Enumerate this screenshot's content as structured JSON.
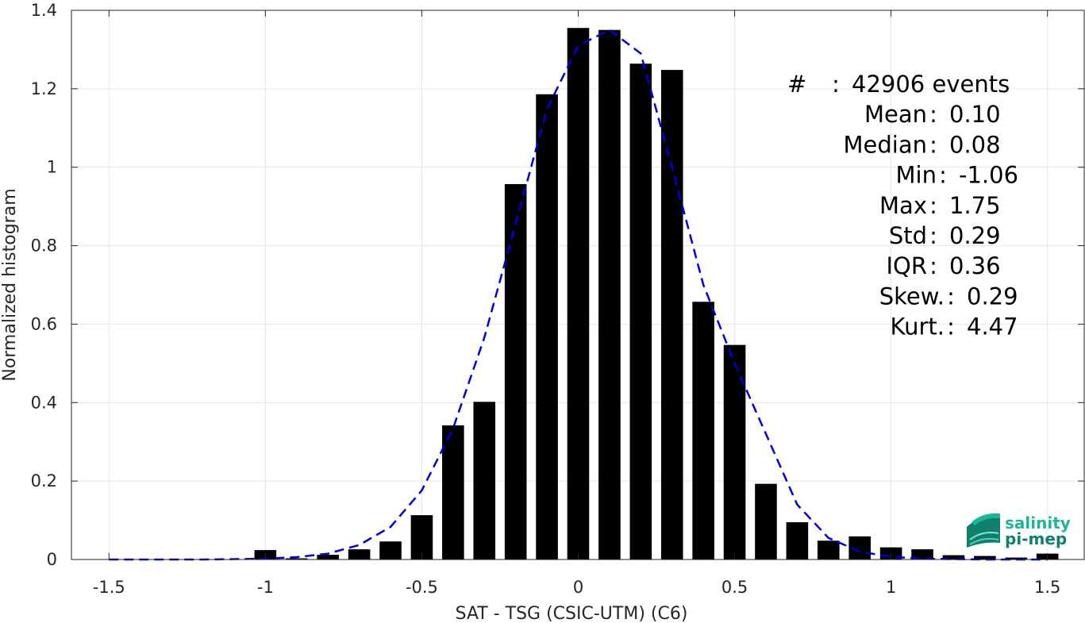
{
  "chart_data": {
    "type": "bar",
    "xlabel": "SAT - TSG (CSIC-UTM) (C6)",
    "ylabel": "Normalized histogram",
    "xlim": [
      -1.62,
      1.62
    ],
    "ylim": [
      0,
      1.4
    ],
    "grid": true,
    "x_ticks": [
      -1.5,
      -1,
      -0.5,
      0,
      0.5,
      1,
      1.5
    ],
    "x_tick_labels": [
      "-1.5",
      "-1",
      "-0.5",
      "0",
      "0.5",
      "1",
      "1.5"
    ],
    "y_ticks": [
      0,
      0.2,
      0.4,
      0.6,
      0.8,
      1,
      1.2,
      1.4
    ],
    "y_tick_labels": [
      "0",
      "0.2",
      "0.4",
      "0.6",
      "0.8",
      "1",
      "1.2",
      "1.4"
    ],
    "bar_width": 0.07,
    "bars": {
      "x": [
        -1.0,
        -0.9,
        -0.8,
        -0.7,
        -0.6,
        -0.5,
        -0.4,
        -0.3,
        -0.2,
        -0.1,
        0.0,
        0.1,
        0.2,
        0.3,
        0.4,
        0.5,
        0.6,
        0.7,
        0.8,
        0.9,
        1.0,
        1.1,
        1.2,
        1.3,
        1.4,
        1.5
      ],
      "values": [
        0.024,
        0.003,
        0.012,
        0.026,
        0.046,
        0.113,
        0.342,
        0.402,
        0.957,
        1.186,
        1.355,
        1.35,
        1.264,
        1.248,
        0.657,
        0.547,
        0.193,
        0.095,
        0.048,
        0.059,
        0.031,
        0.026,
        0.011,
        0.009,
        0.005,
        0.015
      ],
      "color": "#000000"
    },
    "fit_curve": {
      "style": "dashed",
      "color": "#0000dd",
      "x": [
        -1.5,
        -1.4,
        -1.3,
        -1.2,
        -1.1,
        -1.0,
        -0.9,
        -0.8,
        -0.7,
        -0.6,
        -0.5,
        -0.4,
        -0.3,
        -0.2,
        -0.1,
        0.0,
        0.1,
        0.2,
        0.3,
        0.4,
        0.5,
        0.6,
        0.7,
        0.8,
        0.9,
        1.0,
        1.1,
        1.2,
        1.3,
        1.4,
        1.5
      ],
      "y": [
        0.0,
        0.0,
        0.0,
        0.0,
        0.001,
        0.002,
        0.006,
        0.015,
        0.037,
        0.083,
        0.176,
        0.334,
        0.566,
        0.856,
        1.148,
        1.31,
        1.35,
        1.29,
        1.0,
        0.7,
        0.5,
        0.32,
        0.14,
        0.055,
        0.02,
        0.007,
        0.002,
        0.001,
        0.0,
        0.0,
        0.0
      ]
    }
  },
  "stats": [
    {
      "label": "#",
      "sep": " : ",
      "value": "42906 events"
    },
    {
      "label": "Mean",
      "sep": " : ",
      "value": "0.10"
    },
    {
      "label": "Median",
      "sep": " : ",
      "value": "0.08"
    },
    {
      "label": "Min",
      "sep": " : ",
      "value": "-1.06"
    },
    {
      "label": "Max",
      "sep": " : ",
      "value": "1.75"
    },
    {
      "label": "Std",
      "sep": " : ",
      "value": "0.29"
    },
    {
      "label": "IQR",
      "sep": " : ",
      "value": "0.36"
    },
    {
      "label": "Skew.",
      "sep": " : ",
      "value": "0.29"
    },
    {
      "label": "Kurt.",
      "sep": " : ",
      "value": "4.47"
    }
  ],
  "logo": {
    "line1": "salinity",
    "line2": "pi-mep",
    "color_top": "#1fb49a",
    "color_bottom": "#0f7f6e"
  }
}
